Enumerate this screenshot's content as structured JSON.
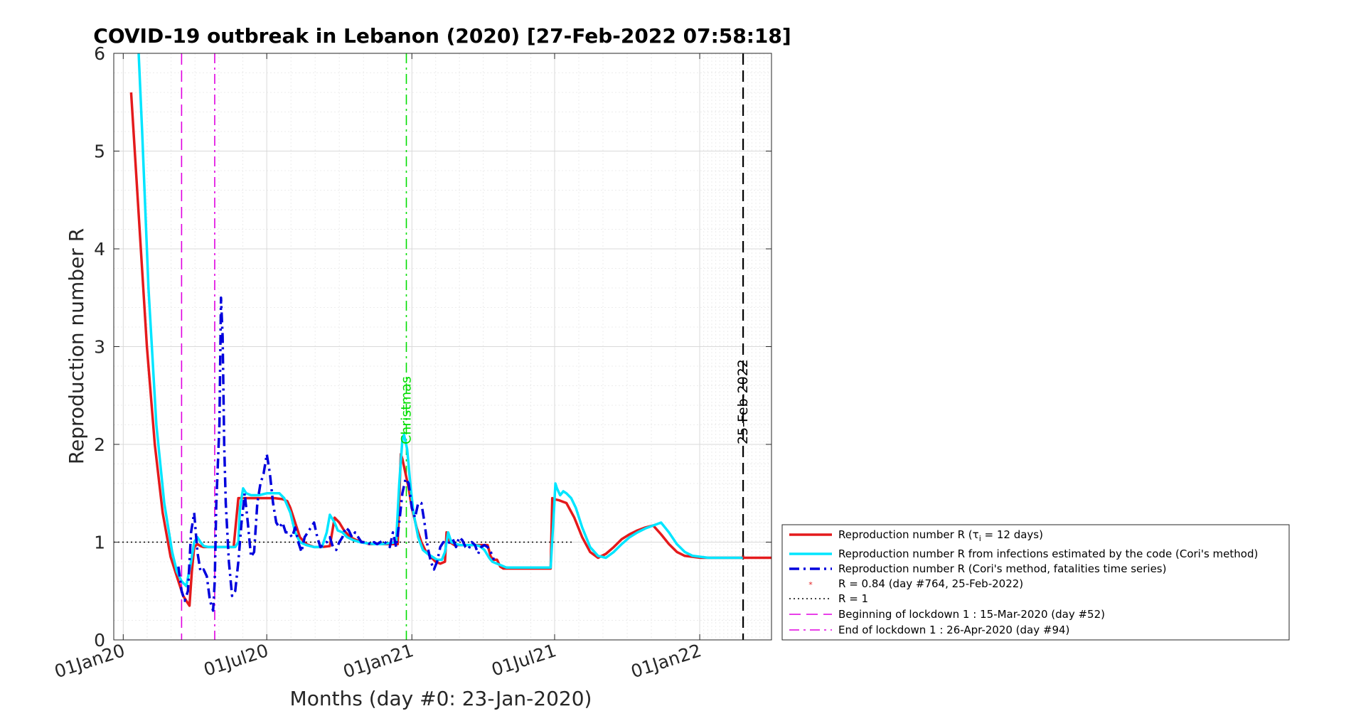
{
  "chart_data": {
    "type": "line",
    "title": "COVID-19 outbreak in Lebanon (2020) [27-Feb-2022 07:58:18]",
    "xlabel": "Months (day #0: 23-Jan-2020)",
    "ylabel": "Reproduction number R",
    "x_unit": "days since 23-Jan-2020",
    "xlim": [
      -34,
      800
    ],
    "ylim": [
      0,
      6
    ],
    "yticks": [
      0,
      1,
      2,
      3,
      4,
      5,
      6
    ],
    "xticks": [
      {
        "day": -22,
        "label": "01Jan20"
      },
      {
        "day": 160,
        "label": "01Jul20"
      },
      {
        "day": 344,
        "label": "01Jan21"
      },
      {
        "day": 525,
        "label": "01Jul21"
      },
      {
        "day": 709,
        "label": "01Jan22"
      }
    ],
    "grid": true,
    "legend_position": "lower-right, outside axes",
    "series": [
      {
        "name": "Reproduction number R (τi = 12 days)",
        "color": "#e41a1c",
        "style": "solid",
        "x": [
          -12,
          -2,
          8,
          18,
          28,
          38,
          48,
          54,
          58,
          62,
          65,
          68,
          72,
          76,
          80,
          86,
          92,
          98,
          104,
          108,
          112,
          118,
          124,
          130,
          140,
          150,
          160,
          170,
          180,
          186,
          190,
          196,
          202,
          210,
          220,
          230,
          240,
          246,
          252,
          258,
          266,
          274,
          282,
          290,
          300,
          310,
          320,
          326,
          330,
          332,
          336,
          340,
          344,
          350,
          356,
          362,
          368,
          374,
          380,
          386,
          388,
          392,
          398,
          404,
          410,
          416,
          422,
          428,
          434,
          440,
          444,
          448,
          452,
          456,
          460,
          470,
          480,
          490,
          500,
          510,
          520,
          522,
          524,
          530,
          540,
          550,
          560,
          570,
          580,
          590,
          600,
          610,
          620,
          630,
          640,
          650,
          660,
          670,
          680,
          690,
          700,
          710,
          720,
          730,
          740,
          750,
          760,
          764,
          770,
          780,
          790,
          800
        ],
        "y": [
          5.6,
          4.3,
          3.0,
          2.0,
          1.3,
          0.85,
          0.6,
          0.45,
          0.4,
          0.35,
          0.7,
          0.95,
          0.98,
          0.96,
          0.95,
          0.95,
          0.95,
          0.95,
          0.95,
          0.95,
          0.95,
          0.95,
          1.45,
          1.45,
          1.45,
          1.45,
          1.45,
          1.45,
          1.44,
          1.42,
          1.35,
          1.2,
          1.05,
          0.98,
          0.95,
          0.95,
          0.96,
          1.25,
          1.2,
          1.12,
          1.05,
          1.02,
          1.0,
          0.98,
          0.98,
          0.98,
          0.98,
          0.98,
          1.9,
          1.85,
          1.7,
          1.55,
          1.35,
          1.15,
          1.0,
          0.9,
          0.85,
          0.8,
          0.78,
          0.8,
          1.1,
          1.0,
          0.97,
          0.97,
          0.97,
          0.97,
          0.97,
          0.97,
          0.97,
          0.97,
          0.85,
          0.82,
          0.82,
          0.75,
          0.73,
          0.73,
          0.73,
          0.73,
          0.73,
          0.73,
          0.73,
          1.45,
          1.44,
          1.43,
          1.4,
          1.25,
          1.05,
          0.9,
          0.84,
          0.88,
          0.95,
          1.03,
          1.08,
          1.12,
          1.15,
          1.17,
          1.08,
          0.98,
          0.9,
          0.86,
          0.85,
          0.84,
          0.84,
          0.84,
          0.84,
          0.84,
          0.84,
          0.84,
          0.84,
          0.84,
          0.84,
          0.84
        ]
      },
      {
        "name": "Reproduction number R from infections estimated by the code (Cori's method)",
        "color": "#00e5ff",
        "style": "solid",
        "x": [
          -3,
          2,
          10,
          20,
          30,
          40,
          46,
          52,
          58,
          64,
          68,
          72,
          76,
          80,
          86,
          92,
          98,
          104,
          108,
          112,
          116,
          120,
          124,
          126,
          130,
          134,
          140,
          150,
          160,
          170,
          176,
          182,
          190,
          196,
          202,
          210,
          220,
          230,
          236,
          240,
          246,
          250,
          256,
          262,
          270,
          278,
          286,
          296,
          306,
          316,
          324,
          328,
          332,
          334,
          338,
          342,
          346,
          352,
          358,
          364,
          370,
          376,
          382,
          386,
          390,
          394,
          400,
          406,
          412,
          418,
          424,
          430,
          436,
          442,
          446,
          452,
          458,
          464,
          470,
          480,
          490,
          500,
          510,
          520,
          524,
          526,
          528,
          532,
          536,
          540,
          546,
          552,
          560,
          570,
          580,
          590,
          600,
          610,
          620,
          630,
          640,
          650,
          660,
          670,
          680,
          690,
          700,
          710,
          720,
          730,
          740,
          750,
          764
        ],
        "y": [
          6.1,
          5.2,
          3.6,
          2.2,
          1.4,
          0.9,
          0.7,
          0.6,
          0.55,
          0.8,
          1.0,
          1.05,
          1.0,
          0.96,
          0.95,
          0.95,
          0.95,
          0.95,
          0.95,
          0.95,
          0.95,
          0.95,
          1.0,
          1.35,
          1.55,
          1.5,
          1.48,
          1.48,
          1.5,
          1.5,
          1.5,
          1.45,
          1.3,
          1.1,
          1.0,
          0.97,
          0.95,
          0.95,
          1.1,
          1.28,
          1.2,
          1.12,
          1.1,
          1.05,
          1.02,
          1.0,
          0.99,
          0.98,
          0.98,
          0.99,
          1.0,
          1.6,
          2.05,
          2.1,
          1.95,
          1.6,
          1.3,
          1.05,
          0.92,
          0.88,
          0.85,
          0.82,
          0.82,
          0.9,
          1.1,
          1.0,
          0.98,
          0.97,
          0.97,
          0.97,
          0.97,
          0.96,
          0.92,
          0.84,
          0.8,
          0.78,
          0.76,
          0.74,
          0.74,
          0.74,
          0.74,
          0.74,
          0.74,
          0.74,
          1.3,
          1.6,
          1.55,
          1.48,
          1.52,
          1.5,
          1.45,
          1.35,
          1.15,
          0.95,
          0.86,
          0.84,
          0.9,
          0.98,
          1.05,
          1.1,
          1.14,
          1.17,
          1.2,
          1.1,
          0.98,
          0.9,
          0.86,
          0.85,
          0.84,
          0.84,
          0.84,
          0.84,
          0.84
        ]
      },
      {
        "name": "Reproduction number R (Cori's method, fatalities time series)",
        "color": "#0000dd",
        "style": "dashdot",
        "x": [
          48,
          52,
          56,
          60,
          64,
          68,
          72,
          76,
          80,
          84,
          88,
          92,
          94,
          96,
          100,
          102,
          104,
          106,
          108,
          112,
          116,
          120,
          124,
          128,
          132,
          136,
          140,
          144,
          148,
          152,
          156,
          160,
          164,
          168,
          172,
          176,
          180,
          184,
          188,
          192,
          196,
          200,
          204,
          208,
          212,
          216,
          220,
          224,
          228,
          232,
          236,
          240,
          244,
          248,
          252,
          256,
          260,
          264,
          268,
          272,
          276,
          280,
          284,
          288,
          292,
          296,
          300,
          304,
          308,
          312,
          316,
          320,
          324,
          328,
          332,
          336,
          340,
          344,
          348,
          352,
          356,
          360,
          364,
          368,
          372,
          376,
          380,
          384,
          388,
          392,
          396,
          400,
          404,
          408,
          412,
          416,
          420,
          424,
          428,
          432,
          436,
          440,
          444,
          448
        ],
        "y": [
          0.75,
          0.5,
          0.4,
          0.5,
          1.1,
          1.3,
          0.9,
          0.7,
          0.72,
          0.65,
          0.4,
          0.3,
          0.6,
          1.4,
          2.2,
          3.5,
          3.1,
          2.0,
          1.4,
          0.8,
          0.45,
          0.5,
          0.8,
          1.2,
          1.5,
          1.2,
          0.85,
          0.9,
          1.4,
          1.6,
          1.7,
          1.9,
          1.7,
          1.4,
          1.2,
          1.15,
          1.2,
          1.1,
          1.1,
          1.05,
          1.15,
          1.0,
          0.9,
          1.05,
          1.1,
          1.15,
          1.2,
          1.05,
          0.95,
          0.97,
          1.0,
          1.05,
          0.95,
          0.92,
          1.0,
          1.05,
          1.15,
          1.12,
          1.05,
          1.1,
          1.05,
          1.0,
          1.0,
          1.0,
          0.97,
          1.0,
          0.98,
          1.0,
          1.02,
          0.98,
          0.95,
          1.1,
          0.95,
          1.2,
          1.5,
          1.65,
          1.6,
          1.35,
          1.25,
          1.4,
          1.4,
          1.2,
          0.95,
          0.8,
          0.72,
          0.8,
          0.95,
          1.0,
          0.98,
          1.0,
          1.03,
          0.95,
          1.05,
          1.02,
          0.95,
          0.93,
          1.0,
          0.97,
          0.88,
          0.95,
          0.97,
          0.95,
          0.9,
          0.82
        ]
      }
    ],
    "reference_lines": [
      {
        "name": "R = 1",
        "orientation": "horizontal",
        "value": 1,
        "color": "#000000",
        "style": "dotted"
      },
      {
        "name": "Beginning of lockdown 1 : 15-Mar-2020 (day #52)",
        "orientation": "vertical",
        "day": 52,
        "color": "#e000e0",
        "style": "dashed"
      },
      {
        "name": "End of lockdown 1 : 26-Apr-2020 (day #94)",
        "orientation": "vertical",
        "day": 94,
        "color": "#e000e0",
        "style": "dashdot"
      },
      {
        "name": "Christmas",
        "orientation": "vertical",
        "day": 337,
        "color": "#00dd00",
        "style": "dashdot",
        "label": "Christmas"
      },
      {
        "name": "25-Feb-2022",
        "orientation": "vertical",
        "day": 764,
        "color": "#000000",
        "style": "dashed",
        "label": "25-Feb-2022"
      }
    ],
    "marker": {
      "name": "R = 0.84 (day #764, 25-Feb-2022)",
      "day": 764,
      "value": 0.84,
      "color": "#e41a1c"
    },
    "legend": [
      {
        "label": "Reproduction number R (τ",
        "sub": "i",
        "label_tail": " = 12 days)",
        "color": "#e41a1c",
        "style": "solid",
        "width": 3.5
      },
      {
        "label": "Reproduction number R from infections estimated by the code (Cori's method)",
        "color": "#00e5ff",
        "style": "solid",
        "width": 3.5
      },
      {
        "label": "Reproduction number R (Cori's method, fatalities time series)",
        "color": "#0000dd",
        "style": "dashdot",
        "width": 3.5
      },
      {
        "label": "R = 0.84 (day #764, 25-Feb-2022)",
        "color": "#e41a1c",
        "style": "marker",
        "width": 1
      },
      {
        "label": "R = 1",
        "color": "#000000",
        "style": "dotted",
        "width": 1.5
      },
      {
        "label": "Beginning of lockdown 1 : 15-Mar-2020 (day #52)",
        "color": "#e000e0",
        "style": "dashed",
        "width": 1.5
      },
      {
        "label": "End of lockdown 1 : 26-Apr-2020 (day #94)",
        "color": "#e000e0",
        "style": "dashdot",
        "width": 1.5
      }
    ]
  }
}
